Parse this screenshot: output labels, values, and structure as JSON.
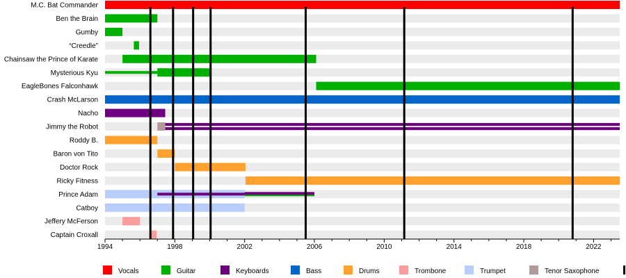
{
  "chart_data": {
    "type": "timeline",
    "x_unit": "year",
    "xlim": [
      1994,
      2023.5
    ],
    "x_ticks": [
      "1994",
      "1998",
      "2002",
      "2006",
      "2010",
      "2014",
      "2018",
      "2022"
    ],
    "x_tick_values": [
      1994,
      1998,
      2002,
      2006,
      2010,
      2014,
      2018,
      2022
    ],
    "members": [
      "M.C. Bat Commander",
      "Ben the Brain",
      "Gumby",
      "“Creedle”",
      "Chainsaw the Prince of Karate",
      "Mysterious Kyu",
      "EagleBones Falconhawk",
      "Crash McLarson",
      "Nacho",
      "Jimmy the Robot",
      "Roddy B.",
      "Baron von Tito",
      "Doctor Rock",
      "Ricky Fitness",
      "Prince Adam",
      "Catboy",
      "Jeffery McFerson",
      "Captain Croxall"
    ],
    "instruments": [
      {
        "name": "Vocals",
        "color": "#ff0000"
      },
      {
        "name": "Guitar",
        "color": "#00b000"
      },
      {
        "name": "Keyboards",
        "color": "#6e0080"
      },
      {
        "name": "Bass",
        "color": "#0064c8"
      },
      {
        "name": "Drums",
        "color": "#ffa12e"
      },
      {
        "name": "Trombone",
        "color": "#f99c9c"
      },
      {
        "name": "Trumpet",
        "color": "#b8cdf8"
      },
      {
        "name": "Tenor Saxophone",
        "color": "#b19a9a"
      }
    ],
    "bars": [
      {
        "member": 0,
        "instrument": "Vocals",
        "start": 1994,
        "end": 2023.5,
        "style": "full"
      },
      {
        "member": 1,
        "instrument": "Guitar",
        "start": 1994,
        "end": 1997,
        "style": "full"
      },
      {
        "member": 2,
        "instrument": "Guitar",
        "start": 1994,
        "end": 1995,
        "style": "full"
      },
      {
        "member": 3,
        "instrument": "Guitar",
        "start": 1995.65,
        "end": 1995.95,
        "style": "full"
      },
      {
        "member": 4,
        "instrument": "Guitar",
        "start": 1995,
        "end": 2006.1,
        "style": "full"
      },
      {
        "member": 5,
        "instrument": "Guitar",
        "start": 1994,
        "end": 1997,
        "style": "thin"
      },
      {
        "member": 5,
        "instrument": "Guitar",
        "start": 1997,
        "end": 2000,
        "style": "full"
      },
      {
        "member": 6,
        "instrument": "Guitar",
        "start": 2006.1,
        "end": 2023.5,
        "style": "full"
      },
      {
        "member": 7,
        "instrument": "Bass",
        "start": 1994,
        "end": 2023.5,
        "style": "full"
      },
      {
        "member": 8,
        "instrument": "Keyboards",
        "start": 1994,
        "end": 1997.45,
        "style": "full"
      },
      {
        "member": 9,
        "instrument": "Tenor Saxophone",
        "start": 1997,
        "end": 1997.45,
        "style": "full"
      },
      {
        "member": 9,
        "instrument": "Keyboards",
        "start": 1997.45,
        "end": 2023.5,
        "style": "two-thin"
      },
      {
        "member": 10,
        "instrument": "Drums",
        "start": 1994,
        "end": 1997,
        "style": "full"
      },
      {
        "member": 11,
        "instrument": "Drums",
        "start": 1997,
        "end": 1998,
        "style": "full"
      },
      {
        "member": 12,
        "instrument": "Drums",
        "start": 1998,
        "end": 2002.05,
        "style": "full"
      },
      {
        "member": 13,
        "instrument": "Drums",
        "start": 2002.05,
        "end": 2023.5,
        "style": "full"
      },
      {
        "member": 14,
        "instrument": "Trumpet",
        "start": 1994,
        "end": 2002,
        "style": "full"
      },
      {
        "member": 14,
        "instrument": "Keyboards",
        "start": 1997,
        "end": 2002,
        "style": "thin"
      },
      {
        "member": 14,
        "instrument": "Guitar",
        "start": 2002,
        "end": 2006,
        "style": "mid-lower"
      },
      {
        "member": 14,
        "instrument": "Keyboards",
        "start": 2002,
        "end": 2006,
        "style": "mid-upper"
      },
      {
        "member": 15,
        "instrument": "Trumpet",
        "start": 1994,
        "end": 2002,
        "style": "full"
      },
      {
        "member": 16,
        "instrument": "Trombone",
        "start": 1995,
        "end": 1996,
        "style": "full"
      },
      {
        "member": 17,
        "instrument": "Trombone",
        "start": 1996.55,
        "end": 1996.95,
        "style": "full"
      }
    ],
    "album_lines": [
      1996.6,
      1997.9,
      1999.05,
      2000.05,
      2005.5,
      2011.15,
      2020.8
    ],
    "grid": "horizontal bands"
  }
}
